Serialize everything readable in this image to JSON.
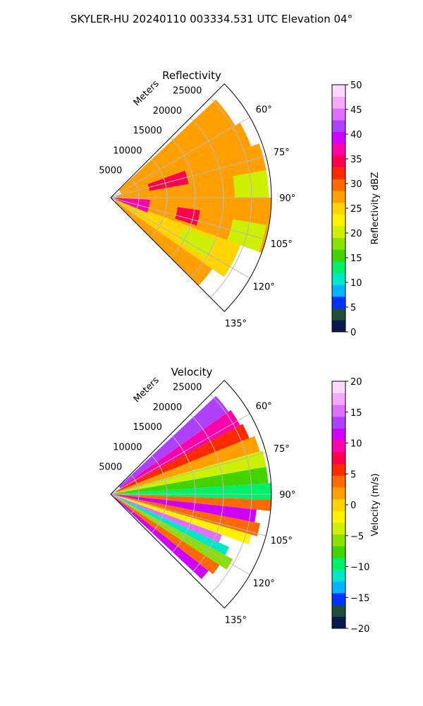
{
  "figure": {
    "suptitle": "SKYLER-HU  20240110  003334.531 UTC Elevation 04°"
  },
  "chart_data": [
    {
      "type": "heatmap",
      "subtype": "polar-sector (radar PPI)",
      "title": "Reflectivity",
      "radial_axis_label": "Meters",
      "radial_ticks": [
        5000,
        10000,
        15000,
        20000,
        25000
      ],
      "radial_tick_labels": [
        "5000",
        "10000",
        "15000",
        "20000",
        "25000"
      ],
      "r_max": 28500,
      "azimuth_range_deg": [
        45,
        135
      ],
      "azimuth_ticks_deg": [
        60,
        75,
        90,
        105,
        120,
        135
      ],
      "azimuth_tick_labels": [
        "60°",
        "75°",
        "90°",
        "105°",
        "120°",
        "135°"
      ],
      "grid": true,
      "colorbar": {
        "label": "Reflectivity dBZ",
        "range": [
          0,
          50
        ],
        "ticks": [
          0,
          5,
          10,
          15,
          20,
          25,
          30,
          35,
          40,
          45,
          50
        ],
        "tick_labels": [
          "0",
          "5",
          "10",
          "15",
          "20",
          "25",
          "30",
          "35",
          "40",
          "45",
          "50"
        ],
        "colors": [
          "#0a1a4f",
          "#1e4d3a",
          "#0033ff",
          "#00b4ff",
          "#00e6c8",
          "#00f06a",
          "#43d400",
          "#8ae000",
          "#ccf000",
          "#fff200",
          "#ffd400",
          "#ffa000",
          "#ff6a00",
          "#ff2a00",
          "#ff0050",
          "#ff00aa",
          "#d000ff",
          "#b040ff",
          "#e070ff",
          "#f6a8ff",
          "#ffd8ff"
        ]
      },
      "field_description": "mostly 22-32 dBZ; peaks ~35-38 dBZ near origin; lower ~18-22 dBZ at far range",
      "sectors": [
        {
          "az_from": 47,
          "az_to": 60,
          "r_from": 2000,
          "r_to": 25500,
          "value": 27
        },
        {
          "az_from": 60,
          "az_to": 70,
          "r_from": 2000,
          "r_to": 26500,
          "value": 28
        },
        {
          "az_from": 70,
          "az_to": 90,
          "r_from": 1000,
          "r_to": 28000,
          "value": 28
        },
        {
          "az_from": 90,
          "az_to": 110,
          "r_from": 1000,
          "r_to": 28500,
          "value": 27
        },
        {
          "az_from": 110,
          "az_to": 125,
          "r_from": 1000,
          "r_to": 24500,
          "value": 26
        },
        {
          "az_from": 125,
          "az_to": 135,
          "r_from": 1000,
          "r_to": 22000,
          "value": 28
        },
        {
          "az_from": 70,
          "az_to": 80,
          "r_from": 7000,
          "r_to": 14000,
          "value": 35
        },
        {
          "az_from": 93,
          "az_to": 112,
          "r_from": 0,
          "r_to": 7000,
          "value": 37
        },
        {
          "az_from": 98,
          "az_to": 108,
          "r_from": 12000,
          "r_to": 16000,
          "value": 34
        },
        {
          "az_from": 80,
          "az_to": 90,
          "r_from": 22000,
          "r_to": 28000,
          "value": 21
        },
        {
          "az_from": 100,
          "az_to": 110,
          "r_from": 22000,
          "r_to": 28000,
          "value": 21
        },
        {
          "az_from": 112,
          "az_to": 122,
          "r_from": 14000,
          "r_to": 20000,
          "value": 21
        }
      ]
    },
    {
      "type": "heatmap",
      "subtype": "polar-sector (radar PPI)",
      "title": "Velocity",
      "radial_axis_label": "Meters",
      "radial_ticks": [
        5000,
        10000,
        15000,
        20000,
        25000
      ],
      "radial_tick_labels": [
        "5000",
        "10000",
        "15000",
        "20000",
        "25000"
      ],
      "r_max": 28500,
      "azimuth_range_deg": [
        45,
        135
      ],
      "azimuth_ticks_deg": [
        60,
        75,
        90,
        105,
        120,
        135
      ],
      "azimuth_tick_labels": [
        "60°",
        "75°",
        "90°",
        "105°",
        "120°",
        "135°"
      ],
      "grid": true,
      "colorbar": {
        "label": "Velocity (m/s)",
        "range": [
          -20,
          20
        ],
        "ticks": [
          -20,
          -15,
          -10,
          -5,
          0,
          5,
          10,
          15,
          20
        ],
        "tick_labels": [
          "−20",
          "−15",
          "−10",
          "−5",
          "0",
          "5",
          "10",
          "15",
          "20"
        ],
        "colors": [
          "#0a1a4f",
          "#1e4d3a",
          "#0033ff",
          "#00b4ff",
          "#00e6c8",
          "#00f06a",
          "#43d400",
          "#8ae000",
          "#ccf000",
          "#fff200",
          "#ffd400",
          "#ffa000",
          "#ff6a00",
          "#ff2a00",
          "#ff0050",
          "#ff00aa",
          "#d000ff",
          "#b040ff",
          "#e070ff",
          "#f6a8ff",
          "#ffd8ff"
        ]
      },
      "field_description": "banded dipole pattern: ~+12 m/s near 60° and 125-133°, ~−8 to −12 m/s near 85-95° and 117-122°, ~+15 m/s band near 98-102° and 110-114°",
      "sectors": [
        {
          "az_from": 47,
          "az_to": 55,
          "r_from": 2000,
          "r_to": 25500,
          "value": 14
        },
        {
          "az_from": 55,
          "az_to": 62,
          "r_from": 2000,
          "r_to": 26000,
          "value": 10
        },
        {
          "az_from": 62,
          "az_to": 68,
          "r_from": 1000,
          "r_to": 26500,
          "value": 6
        },
        {
          "az_from": 68,
          "az_to": 74,
          "r_from": 1000,
          "r_to": 27500,
          "value": 1
        },
        {
          "az_from": 74,
          "az_to": 80,
          "r_from": 0,
          "r_to": 28000,
          "value": -3
        },
        {
          "az_from": 80,
          "az_to": 86,
          "r_from": 0,
          "r_to": 28000,
          "value": -7
        },
        {
          "az_from": 86,
          "az_to": 92,
          "r_from": 0,
          "r_to": 28500,
          "value": -10
        },
        {
          "az_from": 92,
          "az_to": 96,
          "r_from": 0,
          "r_to": 28500,
          "value": 4
        },
        {
          "az_from": 96,
          "az_to": 101,
          "r_from": 0,
          "r_to": 26000,
          "value": 11
        },
        {
          "az_from": 101,
          "az_to": 106,
          "r_from": 0,
          "r_to": 27000,
          "value": 4
        },
        {
          "az_from": 106,
          "az_to": 110,
          "r_from": 0,
          "r_to": 26000,
          "value": -2
        },
        {
          "az_from": 110,
          "az_to": 114,
          "r_from": 0,
          "r_to": 21000,
          "value": 15
        },
        {
          "az_from": 114,
          "az_to": 118,
          "r_from": 0,
          "r_to": 23000,
          "value": -11
        },
        {
          "az_from": 118,
          "az_to": 123,
          "r_from": 0,
          "r_to": 24500,
          "value": -5
        },
        {
          "az_from": 123,
          "az_to": 128,
          "r_from": 0,
          "r_to": 23000,
          "value": 3
        },
        {
          "az_from": 128,
          "az_to": 133,
          "r_from": 1000,
          "r_to": 22000,
          "value": 11
        }
      ]
    }
  ]
}
